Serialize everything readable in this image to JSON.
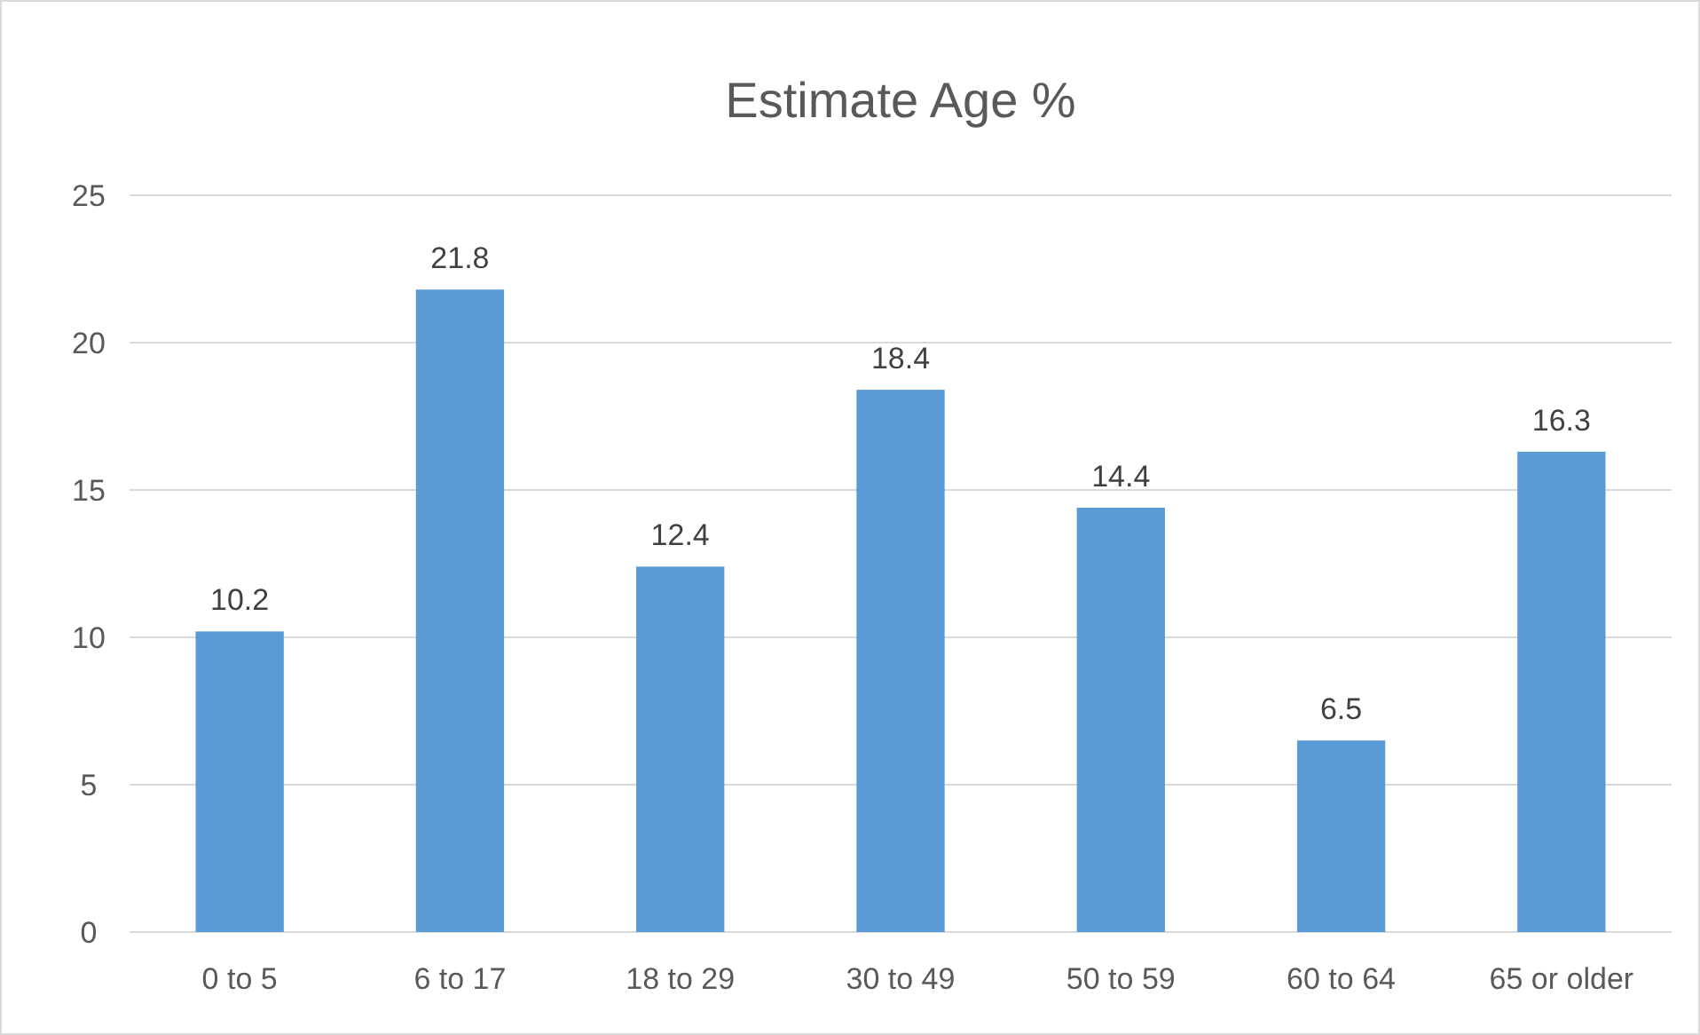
{
  "chart_data": {
    "type": "bar",
    "title": "Estimate Age %",
    "categories": [
      "0 to 5",
      "6 to 17",
      "18 to 29",
      "30 to 49",
      "50 to 59",
      "60 to 64",
      "65 or older"
    ],
    "values": [
      10.2,
      21.8,
      12.4,
      18.4,
      14.4,
      6.5,
      16.3
    ],
    "color": "#5b9bd5",
    "ylim": [
      0,
      25
    ],
    "yticks": [
      0,
      5,
      10,
      15,
      20,
      25
    ],
    "grid": "y",
    "data_labels": true
  }
}
